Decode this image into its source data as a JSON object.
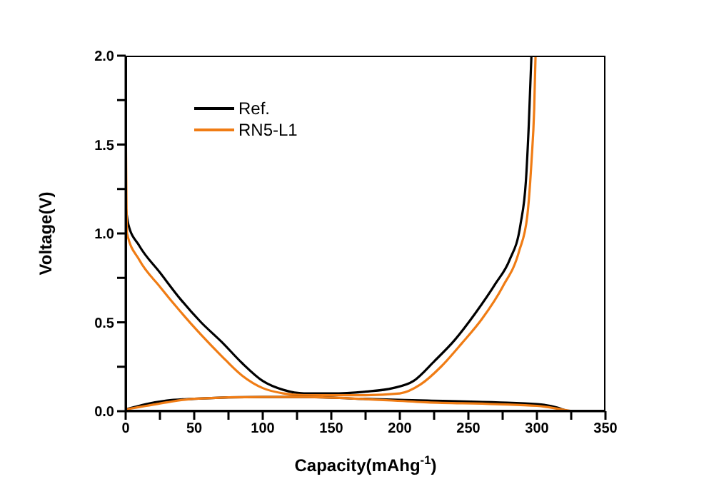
{
  "chart_data": {
    "type": "line",
    "xlabel": "Capacity(mAhg$^{-1}$)",
    "ylabel": "Voltage(V)",
    "xlim": [
      0,
      350
    ],
    "ylim": [
      0,
      2.0
    ],
    "xticks": [
      0,
      {
        "value": 25,
        "label": null
      },
      50,
      {
        "value": 75,
        "label": null
      },
      100,
      {
        "value": 125,
        "label": null
      },
      150,
      {
        "value": 175,
        "label": null
      },
      200,
      {
        "value": 225,
        "label": null
      },
      250,
      {
        "value": 275,
        "label": null
      },
      300,
      {
        "value": 325,
        "label": null
      },
      350
    ],
    "yticks": [
      {
        "value": 0,
        "label": "0.0"
      },
      {
        "value": 0.25,
        "label": null
      },
      0.5,
      {
        "value": 0.75,
        "label": null
      },
      {
        "value": 1,
        "label": "1.0"
      },
      {
        "value": 1.25,
        "label": null
      },
      1.5,
      {
        "value": 1.75,
        "label": null
      },
      {
        "value": 2,
        "label": "2.0"
      }
    ],
    "legend": "top left",
    "marker": "none",
    "line_style": "solid",
    "series": [
      {
        "name": "Ref.",
        "color": "#000000",
        "x": [
          0,
          2,
          10,
          25,
          40,
          55,
          70,
          85,
          100,
          115,
          130,
          150,
          175,
          195,
          210,
          225,
          240,
          255,
          270,
          280,
          288,
          292,
          294,
          296
        ],
        "values": [
          1.15,
          1.05,
          0.93,
          0.78,
          0.63,
          0.5,
          0.39,
          0.27,
          0.17,
          0.12,
          0.1,
          0.1,
          0.11,
          0.13,
          0.17,
          0.28,
          0.4,
          0.55,
          0.72,
          0.85,
          1.05,
          1.3,
          1.6,
          2.0
        ]
      },
      {
        "name": "RN5-L1",
        "color": "#f07c14",
        "x": [
          0,
          1,
          10,
          25,
          40,
          55,
          70,
          85,
          100,
          115,
          130,
          150,
          175,
          200,
          215,
          230,
          245,
          260,
          275,
          287,
          293,
          296,
          298,
          299
        ],
        "values": [
          1.7,
          1.0,
          0.85,
          0.7,
          0.56,
          0.43,
          0.31,
          0.2,
          0.13,
          0.1,
          0.09,
          0.09,
          0.09,
          0.1,
          0.15,
          0.25,
          0.38,
          0.52,
          0.7,
          0.9,
          1.1,
          1.4,
          1.7,
          2.0
        ]
      },
      {
        "color": "#000000",
        "x": [
          0,
          15,
          30,
          50,
          100,
          130,
          170,
          220,
          270,
          300,
          315,
          322
        ],
        "values": [
          0.01,
          0.04,
          0.06,
          0.07,
          0.08,
          0.08,
          0.07,
          0.06,
          0.05,
          0.04,
          0.02,
          0.0
        ]
      },
      {
        "color": "#f07c14",
        "x": [
          0,
          15,
          30,
          50,
          100,
          130,
          170,
          220,
          270,
          300,
          318,
          326
        ],
        "values": [
          0.01,
          0.03,
          0.05,
          0.07,
          0.08,
          0.08,
          0.07,
          0.05,
          0.04,
          0.03,
          0.01,
          0.0
        ]
      }
    ]
  }
}
